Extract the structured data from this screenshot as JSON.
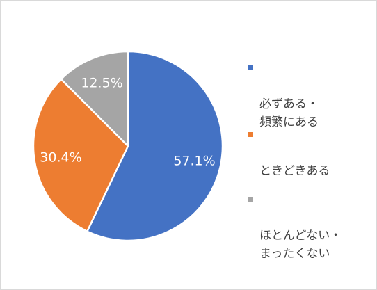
{
  "chart_data": {
    "type": "pie",
    "categories": [
      "必ずある・\n頻繁にある",
      "ときどきある",
      "ほとんどない・\nまったくない"
    ],
    "values": [
      57.1,
      30.4,
      12.5
    ],
    "data_labels": [
      "57.1%",
      "30.4%",
      "12.5%"
    ],
    "colors": [
      "#4472C4",
      "#ED7D31",
      "#A5A5A5"
    ],
    "legend_position": "right",
    "start_angle": "top, clockwise"
  }
}
